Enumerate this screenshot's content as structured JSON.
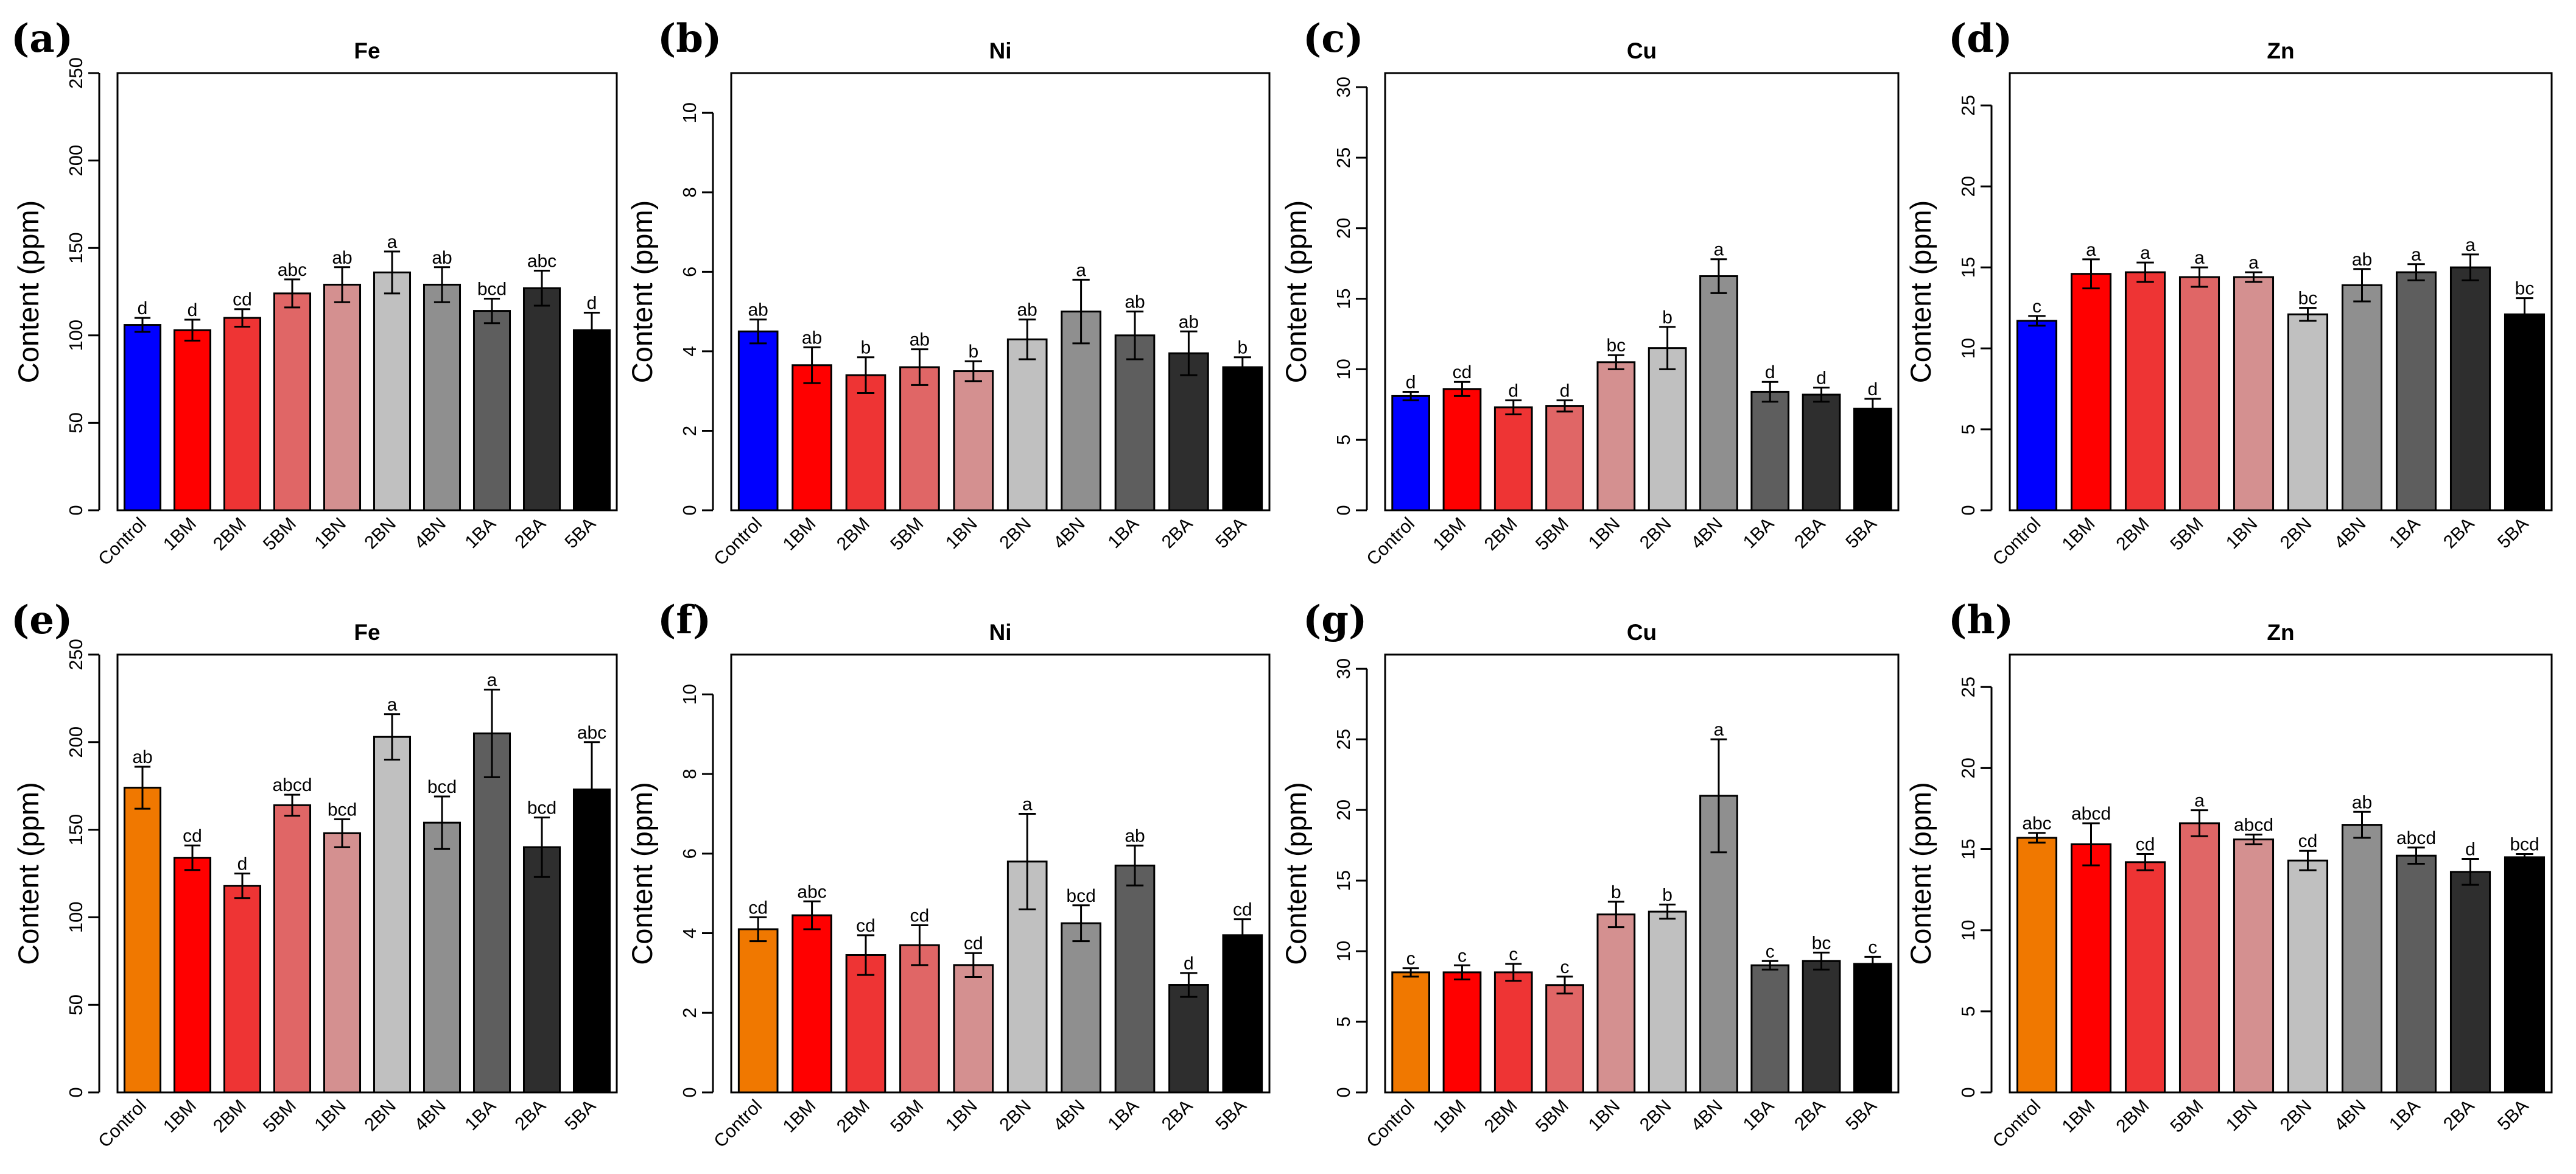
{
  "chart_data": [
    {
      "panel": "(a)",
      "type": "bar",
      "title": "Fe",
      "ylabel": "Content (ppm)",
      "ylim": [
        0,
        250
      ],
      "yticks": [
        0,
        50,
        100,
        150,
        200,
        250
      ],
      "categories": [
        "Control",
        "1BM",
        "2BM",
        "5BM",
        "1BN",
        "2BN",
        "4BN",
        "1BA",
        "2BA",
        "5BA"
      ],
      "values": [
        106,
        103,
        110,
        124,
        129,
        136,
        129,
        114,
        127,
        103
      ],
      "errors": [
        4,
        6,
        5,
        8,
        10,
        12,
        10,
        7,
        10,
        10
      ],
      "letters": [
        "d",
        "d",
        "cd",
        "abc",
        "ab",
        "a",
        "ab",
        "bcd",
        "abc",
        "d"
      ],
      "colors": [
        "#0000ff",
        "#ff0000",
        "#ee3434",
        "#e06666",
        "#d49090",
        "#c0c0c0",
        "#8f8f8f",
        "#5e5e5e",
        "#2e2e2e",
        "#000000"
      ]
    },
    {
      "panel": "(b)",
      "type": "bar",
      "title": "Ni",
      "ylabel": "Content (ppm)",
      "ylim": [
        0,
        11
      ],
      "yticks": [
        0,
        2,
        4,
        6,
        8,
        10
      ],
      "categories": [
        "Control",
        "1BM",
        "2BM",
        "5BM",
        "1BN",
        "2BN",
        "4BN",
        "1BA",
        "2BA",
        "5BA"
      ],
      "values": [
        4.5,
        3.65,
        3.4,
        3.6,
        3.5,
        4.3,
        5.0,
        4.4,
        3.95,
        3.6
      ],
      "errors": [
        0.3,
        0.45,
        0.45,
        0.45,
        0.25,
        0.5,
        0.8,
        0.6,
        0.55,
        0.25
      ],
      "letters": [
        "ab",
        "ab",
        "b",
        "ab",
        "b",
        "ab",
        "a",
        "ab",
        "ab",
        "b"
      ],
      "colors": [
        "#0000ff",
        "#ff0000",
        "#ee3434",
        "#e06666",
        "#d49090",
        "#c0c0c0",
        "#8f8f8f",
        "#5e5e5e",
        "#2e2e2e",
        "#000000"
      ]
    },
    {
      "panel": "(c)",
      "type": "bar",
      "title": "Cu",
      "ylabel": "Content (ppm)",
      "ylim": [
        0,
        31
      ],
      "yticks": [
        0,
        5,
        10,
        15,
        20,
        25,
        30
      ],
      "categories": [
        "Control",
        "1BM",
        "2BM",
        "5BM",
        "1BN",
        "2BN",
        "4BN",
        "1BA",
        "2BA",
        "5BA"
      ],
      "values": [
        8.1,
        8.6,
        7.3,
        7.4,
        10.5,
        11.5,
        16.6,
        8.4,
        8.2,
        7.2
      ],
      "errors": [
        0.3,
        0.5,
        0.5,
        0.4,
        0.5,
        1.5,
        1.2,
        0.7,
        0.5,
        0.7
      ],
      "letters": [
        "d",
        "cd",
        "d",
        "d",
        "bc",
        "b",
        "a",
        "d",
        "d",
        "d"
      ],
      "colors": [
        "#0000ff",
        "#ff0000",
        "#ee3434",
        "#e06666",
        "#d49090",
        "#c0c0c0",
        "#8f8f8f",
        "#5e5e5e",
        "#2e2e2e",
        "#000000"
      ]
    },
    {
      "panel": "(d)",
      "type": "bar",
      "title": "Zn",
      "ylabel": "Content (ppm)",
      "ylim": [
        0,
        27
      ],
      "yticks": [
        0,
        5,
        10,
        15,
        20,
        25
      ],
      "categories": [
        "Control",
        "1BM",
        "2BM",
        "5BM",
        "1BN",
        "2BN",
        "4BN",
        "1BA",
        "2BA",
        "5BA"
      ],
      "values": [
        11.7,
        14.6,
        14.7,
        14.4,
        14.4,
        12.1,
        13.9,
        14.7,
        15.0,
        12.1
      ],
      "errors": [
        0.3,
        0.9,
        0.6,
        0.6,
        0.3,
        0.4,
        1.0,
        0.5,
        0.8,
        1.0
      ],
      "letters": [
        "c",
        "a",
        "a",
        "a",
        "a",
        "bc",
        "ab",
        "a",
        "a",
        "bc"
      ],
      "colors": [
        "#0000ff",
        "#ff0000",
        "#ee3434",
        "#e06666",
        "#d49090",
        "#c0c0c0",
        "#8f8f8f",
        "#5e5e5e",
        "#2e2e2e",
        "#000000"
      ]
    },
    {
      "panel": "(e)",
      "type": "bar",
      "title": "Fe",
      "ylabel": "Content (ppm)",
      "ylim": [
        0,
        250
      ],
      "yticks": [
        0,
        50,
        100,
        150,
        200,
        250
      ],
      "categories": [
        "Control",
        "1BM",
        "2BM",
        "5BM",
        "1BN",
        "2BN",
        "4BN",
        "1BA",
        "2BA",
        "5BA"
      ],
      "values": [
        174,
        134,
        118,
        164,
        148,
        203,
        154,
        205,
        140,
        173
      ],
      "errors": [
        12,
        7,
        7,
        6,
        8,
        13,
        15,
        25,
        17,
        27
      ],
      "letters": [
        "ab",
        "cd",
        "d",
        "abcd",
        "bcd",
        "a",
        "bcd",
        "a",
        "bcd",
        "abc"
      ],
      "colors": [
        "#f07800",
        "#ff0000",
        "#ee3434",
        "#e06666",
        "#d49090",
        "#c0c0c0",
        "#8f8f8f",
        "#5e5e5e",
        "#2e2e2e",
        "#000000"
      ]
    },
    {
      "panel": "(f)",
      "type": "bar",
      "title": "Ni",
      "ylabel": "Content (ppm)",
      "ylim": [
        0,
        11
      ],
      "yticks": [
        0,
        2,
        4,
        6,
        8,
        10
      ],
      "categories": [
        "Control",
        "1BM",
        "2BM",
        "5BM",
        "1BN",
        "2BN",
        "4BN",
        "1BA",
        "2BA",
        "5BA"
      ],
      "values": [
        4.1,
        4.45,
        3.45,
        3.7,
        3.2,
        5.8,
        4.25,
        5.7,
        2.7,
        3.95
      ],
      "errors": [
        0.3,
        0.35,
        0.5,
        0.5,
        0.3,
        1.2,
        0.45,
        0.5,
        0.3,
        0.4
      ],
      "letters": [
        "cd",
        "abc",
        "cd",
        "cd",
        "cd",
        "a",
        "bcd",
        "ab",
        "d",
        "cd"
      ],
      "colors": [
        "#f07800",
        "#ff0000",
        "#ee3434",
        "#e06666",
        "#d49090",
        "#c0c0c0",
        "#8f8f8f",
        "#5e5e5e",
        "#2e2e2e",
        "#000000"
      ]
    },
    {
      "panel": "(g)",
      "type": "bar",
      "title": "Cu",
      "ylabel": "Content (ppm)",
      "ylim": [
        0,
        31
      ],
      "yticks": [
        0,
        5,
        10,
        15,
        20,
        25,
        30
      ],
      "categories": [
        "Control",
        "1BM",
        "2BM",
        "5BM",
        "1BN",
        "2BN",
        "4BN",
        "1BA",
        "2BA",
        "5BA"
      ],
      "values": [
        8.5,
        8.5,
        8.5,
        7.6,
        12.6,
        12.8,
        21.0,
        9.0,
        9.3,
        9.1
      ],
      "errors": [
        0.3,
        0.5,
        0.6,
        0.6,
        0.9,
        0.5,
        4.0,
        0.3,
        0.6,
        0.5
      ],
      "letters": [
        "c",
        "c",
        "c",
        "c",
        "b",
        "b",
        "a",
        "c",
        "bc",
        "c"
      ],
      "colors": [
        "#f07800",
        "#ff0000",
        "#ee3434",
        "#e06666",
        "#d49090",
        "#c0c0c0",
        "#8f8f8f",
        "#5e5e5e",
        "#2e2e2e",
        "#000000"
      ]
    },
    {
      "panel": "(h)",
      "type": "bar",
      "title": "Zn",
      "ylabel": "Content (ppm)",
      "ylim": [
        0,
        27
      ],
      "yticks": [
        0,
        5,
        10,
        15,
        20,
        25
      ],
      "categories": [
        "Control",
        "1BM",
        "2BM",
        "5BM",
        "1BN",
        "2BN",
        "4BN",
        "1BA",
        "2BA",
        "5BA"
      ],
      "values": [
        15.7,
        15.3,
        14.2,
        16.6,
        15.6,
        14.3,
        16.5,
        14.6,
        13.6,
        14.5
      ],
      "errors": [
        0.3,
        1.3,
        0.5,
        0.8,
        0.3,
        0.6,
        0.8,
        0.5,
        0.8,
        0.2
      ],
      "letters": [
        "abc",
        "abcd",
        "cd",
        "a",
        "abcd",
        "cd",
        "ab",
        "abcd",
        "d",
        "bcd"
      ],
      "colors": [
        "#f07800",
        "#ff0000",
        "#ee3434",
        "#e06666",
        "#d49090",
        "#c0c0c0",
        "#8f8f8f",
        "#5e5e5e",
        "#2e2e2e",
        "#000000"
      ]
    }
  ]
}
